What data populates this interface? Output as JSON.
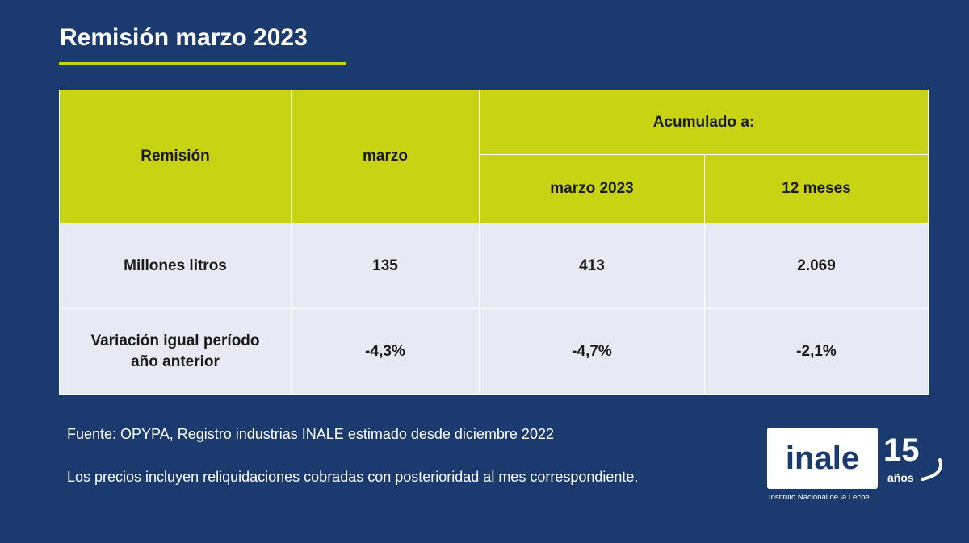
{
  "title": "Remisión marzo 2023",
  "table": {
    "headers": {
      "remision": "Remisión",
      "marzo": "marzo",
      "acumulado": "Acumulado a:",
      "marzo_2023": "marzo 2023",
      "doce_meses": "12 meses"
    },
    "rows": [
      {
        "label": "Millones litros",
        "marzo": "135",
        "marzo_2023": "413",
        "doce_meses": "2.069"
      },
      {
        "label_line1": "Variación igual período",
        "label_line2": "año anterior",
        "marzo": "-4,3%",
        "marzo_2023": "-4,7%",
        "doce_meses": "-2,1%"
      }
    ]
  },
  "footer": {
    "source": "Fuente: OPYPA, Registro industrias INALE estimado desde diciembre 2022",
    "note": "Los precios incluyen reliquidaciones cobradas con posterioridad al mes correspondiente."
  },
  "logo": {
    "word": "inale",
    "anniversary_number": "15",
    "anniversary_text": "años",
    "subtitle": "Instituto Nacional de la Leche"
  },
  "colors": {
    "background": "#1b3a6e",
    "accent": "#c8d314",
    "row_fill": "#e7eaf4"
  }
}
